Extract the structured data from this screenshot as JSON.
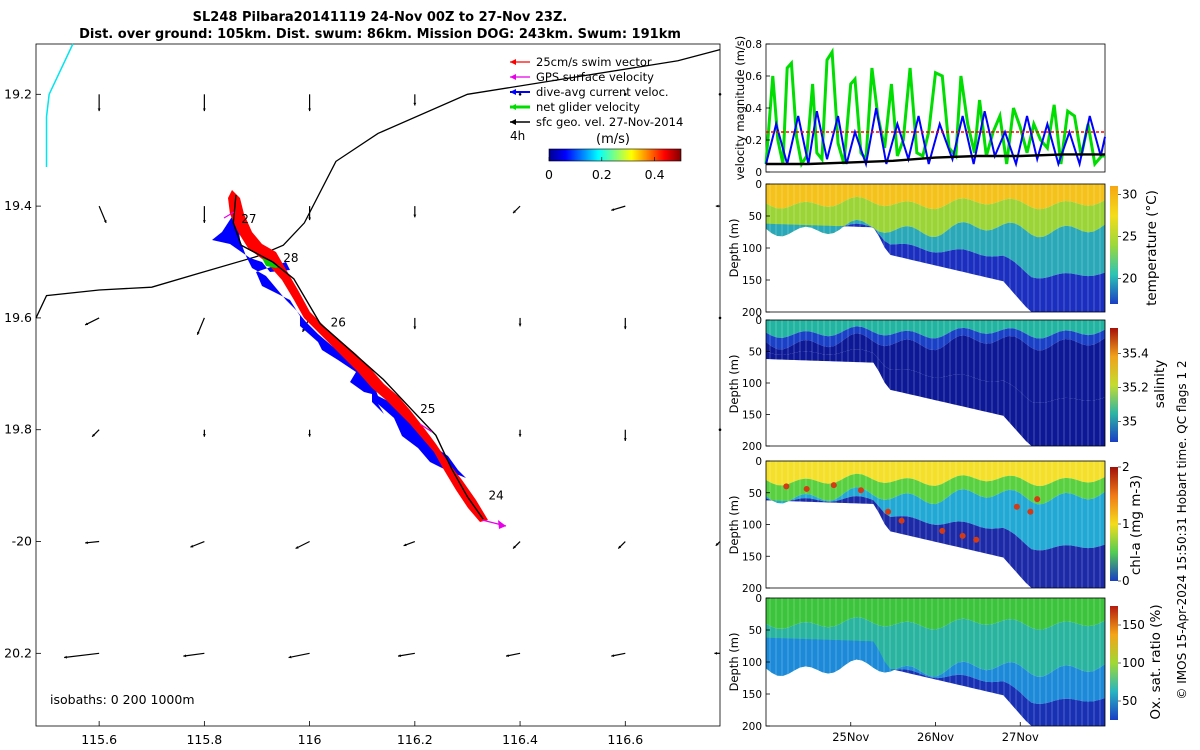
{
  "titles": {
    "line1": "SL248 Pilbara20141119 24-Nov 00Z to 27-Nov 23Z.",
    "line2": "Dist. over ground: 105km. Dist. swum: 86km. Mission DOG: 243km. Swum: 191km"
  },
  "colors": {
    "swim": "#ff0000",
    "gps": "#e800e8",
    "current": "#0000ff",
    "net": "#00dd00",
    "geo": "#000000",
    "track": "#000000",
    "coast": "#00e5ee"
  },
  "footer": {
    "credit": "© IMOS 15-Apr-2024 15:50:31 Hobart time. QC flags 1  2"
  },
  "chart_data": [
    {
      "type": "map",
      "title": "SL248 Pilbara20141119 24-Nov 00Z to 27-Nov 23Z.",
      "xlim": [
        115.48,
        116.78
      ],
      "ylim": [
        -20.33,
        -19.11
      ],
      "x_ticks": [
        115.6,
        115.8,
        116,
        116.2,
        116.4,
        116.6
      ],
      "x_tick_labels": [
        "115.6",
        "115.8",
        "116",
        "116.2",
        "116.4",
        "116.6"
      ],
      "y_ticks": [
        -19.2,
        -19.4,
        -19.6,
        -19.8,
        -20,
        -20.2
      ],
      "y_tick_labels": [
        "19.2",
        "19.4",
        "19.6",
        "19.8",
        "-20",
        "20.2"
      ],
      "legend": [
        {
          "label": "25cm/s swim vector",
          "color_key": "swim"
        },
        {
          "label": "GPS surface velocity",
          "color_key": "gps"
        },
        {
          "label": "dive-avg current veloc.",
          "color_key": "current"
        },
        {
          "label": "net glider velocity",
          "color_key": "net"
        },
        {
          "label": "sfc geo. vel. 27-Nov-2014",
          "color_key": "geo"
        }
      ],
      "interval_label": "4h",
      "colorbar": {
        "label": "(m/s)",
        "ticks": [
          0,
          0.2,
          0.4
        ],
        "tick_labels": [
          "0",
          "0.2",
          "0.4"
        ],
        "range": [
          0,
          0.5
        ]
      },
      "isobaths_label": "isobaths: 0   200  1000m",
      "track_lon": [
        115.86,
        115.855,
        115.87,
        115.93,
        115.97,
        116.02,
        116.08,
        116.14,
        116.2,
        116.24,
        116.27,
        116.3,
        116.33
      ],
      "track_lat": [
        -19.38,
        -19.43,
        -19.47,
        -19.5,
        -19.53,
        -19.61,
        -19.66,
        -19.71,
        -19.77,
        -19.81,
        -19.87,
        -19.92,
        -19.96
      ],
      "day_labels": [
        {
          "label": "27",
          "lon": 115.87,
          "lat": -19.43
        },
        {
          "label": "28",
          "lon": 115.95,
          "lat": -19.5
        },
        {
          "label": "26",
          "lon": 116.04,
          "lat": -19.615
        },
        {
          "label": "25",
          "lon": 116.21,
          "lat": -19.77
        },
        {
          "label": "24",
          "lon": 116.34,
          "lat": -19.925
        }
      ],
      "isobath_lon": [
        115.48,
        115.5,
        115.6,
        115.7,
        115.79,
        115.9,
        115.95,
        115.99,
        116.05,
        116.13,
        116.3,
        116.5,
        116.7,
        116.78
      ],
      "isobath_lat": [
        -19.6,
        -19.56,
        -19.55,
        -19.545,
        -19.52,
        -19.49,
        -19.47,
        -19.43,
        -19.32,
        -19.27,
        -19.2,
        -19.17,
        -19.14,
        -19.12
      ],
      "coast_lon": [
        115.55,
        115.535,
        115.52,
        115.505,
        115.5,
        115.5
      ],
      "coast_lat": [
        -19.11,
        -19.14,
        -19.17,
        -19.2,
        -19.24,
        -19.33
      ],
      "geo_vectors": {
        "lons": [
          115.6,
          115.8,
          116.0,
          116.2,
          116.4,
          116.6,
          116.78
        ],
        "lats": [
          -19.2,
          -19.4,
          -19.6,
          -19.8,
          -20.0,
          -20.2
        ],
        "u": [
          [
            0,
            0,
            0,
            0,
            0,
            0,
            0
          ],
          [
            0.005,
            0,
            0,
            0,
            -0.005,
            -0.01,
            -0.003
          ],
          [
            -0.01,
            -0.005,
            -0.005,
            0,
            0,
            0,
            0
          ],
          [
            -0.005,
            0,
            0,
            0,
            0,
            0,
            0
          ],
          [
            -0.01,
            -0.01,
            -0.01,
            -0.008,
            -0.005,
            -0.005,
            -0.003
          ],
          [
            -0.025,
            -0.015,
            -0.015,
            -0.012,
            -0.01,
            -0.01,
            -0.004
          ]
        ],
        "v": [
          [
            -0.012,
            -0.012,
            -0.012,
            -0.008,
            0,
            0,
            0
          ],
          [
            -0.012,
            -0.012,
            -0.01,
            -0.008,
            -0.005,
            -0.003,
            0
          ],
          [
            -0.005,
            -0.012,
            -0.01,
            -0.008,
            -0.006,
            -0.008,
            0
          ],
          [
            -0.005,
            -0.005,
            -0.005,
            -0.006,
            -0.005,
            -0.008,
            0
          ],
          [
            -0.001,
            -0.004,
            -0.005,
            -0.003,
            -0.005,
            -0.005,
            -0.003
          ],
          [
            -0.003,
            -0.002,
            -0.003,
            -0.002,
            -0.002,
            -0.002,
            0
          ]
        ]
      }
    },
    {
      "type": "line",
      "ylabel": "velocity magnitude (m/s)",
      "xlim": [
        0,
        4
      ],
      "ylim": [
        0,
        0.8
      ],
      "y_ticks": [
        0,
        0.2,
        0.4,
        0.6,
        0.8
      ],
      "y_tick_labels": [
        "0",
        "0.2",
        "0.4",
        "0.6",
        "0.8"
      ],
      "series": [
        {
          "name": "net glider velocity",
          "color_key": "net",
          "x": [
            0,
            0.08,
            0.14,
            0.2,
            0.25,
            0.3,
            0.36,
            0.42,
            0.48,
            0.55,
            0.6,
            0.66,
            0.72,
            0.78,
            0.85,
            0.92,
            1.0,
            1.05,
            1.12,
            1.18,
            1.25,
            1.32,
            1.4,
            1.48,
            1.55,
            1.62,
            1.7,
            1.78,
            1.85,
            1.92,
            2.0,
            2.08,
            2.16,
            2.24,
            2.3,
            2.38,
            2.46,
            2.52,
            2.6,
            2.68,
            2.76,
            2.84,
            2.92,
            3.0,
            3.08,
            3.16,
            3.24,
            3.32,
            3.4,
            3.48,
            3.56,
            3.64,
            3.72,
            3.8,
            3.88,
            3.96,
            4.0
          ],
          "y": [
            0.05,
            0.6,
            0.2,
            0.05,
            0.65,
            0.68,
            0.22,
            0.05,
            0.1,
            0.55,
            0.12,
            0.08,
            0.7,
            0.75,
            0.18,
            0.05,
            0.55,
            0.58,
            0.12,
            0.08,
            0.65,
            0.35,
            0.15,
            0.55,
            0.1,
            0.2,
            0.65,
            0.12,
            0.1,
            0.25,
            0.62,
            0.6,
            0.15,
            0.1,
            0.6,
            0.3,
            0.12,
            0.45,
            0.1,
            0.25,
            0.35,
            0.05,
            0.4,
            0.28,
            0.12,
            0.3,
            0.2,
            0.15,
            0.42,
            0.05,
            0.38,
            0.35,
            0.1,
            0.3,
            0.05,
            0.1,
            0.1
          ]
        },
        {
          "name": "dive-avg current veloc.",
          "color_key": "current",
          "x": [
            0,
            0.12,
            0.25,
            0.38,
            0.5,
            0.6,
            0.72,
            0.85,
            0.95,
            1.05,
            1.18,
            1.3,
            1.42,
            1.55,
            1.68,
            1.8,
            1.92,
            2.05,
            2.2,
            2.32,
            2.45,
            2.58,
            2.7,
            2.82,
            2.95,
            3.08,
            3.2,
            3.32,
            3.45,
            3.58,
            3.7,
            3.82,
            3.95,
            4.0
          ],
          "y": [
            0.05,
            0.3,
            0.05,
            0.35,
            0.05,
            0.38,
            0.08,
            0.35,
            0.05,
            0.25,
            0.05,
            0.4,
            0.05,
            0.3,
            0.08,
            0.35,
            0.05,
            0.3,
            0.08,
            0.35,
            0.05,
            0.38,
            0.1,
            0.25,
            0.05,
            0.35,
            0.08,
            0.3,
            0.05,
            0.25,
            0.05,
            0.35,
            0.1,
            0.22
          ]
        },
        {
          "name": "25cm/s swim vector",
          "color_key": "swim",
          "x": [
            0,
            4.0
          ],
          "y": [
            0.25,
            0.25
          ]
        },
        {
          "name": "sfc geo. vel. 27-Nov-2014",
          "color_key": "geo",
          "x": [
            0,
            0.5,
            1.0,
            1.5,
            2.0,
            2.5,
            3.0,
            3.5,
            4.0
          ],
          "y": [
            0.05,
            0.05,
            0.06,
            0.07,
            0.09,
            0.1,
            0.1,
            0.11,
            0.11
          ]
        }
      ]
    },
    {
      "type": "heatmap",
      "ylabel": "Depth (m)",
      "variable": "temperature (°C)",
      "ylim": [
        0,
        200
      ],
      "y_ticks": [
        0,
        50,
        100,
        150,
        200
      ],
      "y_tick_labels": [
        "0",
        "50",
        "100",
        "150",
        "200"
      ],
      "colorbar_range": [
        17,
        31
      ],
      "colorbar_ticks": [
        20,
        25,
        30
      ],
      "colorbar_tick_labels": [
        "20",
        "25",
        "30"
      ],
      "scheme": "temperature"
    },
    {
      "type": "heatmap",
      "ylabel": "Depth (m)",
      "variable": "salinity",
      "ylim": [
        0,
        200
      ],
      "y_ticks": [
        0,
        50,
        100,
        150,
        200
      ],
      "y_tick_labels": [
        "0",
        "50",
        "100",
        "150",
        "200"
      ],
      "colorbar_range": [
        34.88,
        35.55
      ],
      "colorbar_ticks": [
        35,
        35.2,
        35.4
      ],
      "colorbar_tick_labels": [
        "35",
        "35.2",
        "35.4"
      ],
      "scheme": "salinity"
    },
    {
      "type": "heatmap",
      "ylabel": "Depth (m)",
      "variable": "chl-a (mg m-3)",
      "ylim": [
        0,
        200
      ],
      "y_ticks": [
        0,
        50,
        100,
        150,
        200
      ],
      "y_tick_labels": [
        "0",
        "50",
        "100",
        "150",
        "200"
      ],
      "colorbar_range": [
        0,
        2
      ],
      "colorbar_ticks": [
        0,
        1,
        2
      ],
      "colorbar_tick_labels": [
        "0",
        "1",
        "2"
      ],
      "scheme": "chla"
    },
    {
      "type": "heatmap",
      "ylabel": "Depth (m)",
      "variable": "Ox. sat. ratio (%)",
      "ylim": [
        0,
        200
      ],
      "y_ticks": [
        0,
        50,
        100,
        150,
        200
      ],
      "y_tick_labels": [
        "0",
        "50",
        "100",
        "150",
        "200"
      ],
      "colorbar_range": [
        25,
        175
      ],
      "colorbar_ticks": [
        50,
        100,
        150
      ],
      "colorbar_tick_labels": [
        "50",
        "100",
        "150"
      ],
      "scheme": "oxygen",
      "x_ticks": [
        1,
        2,
        3
      ],
      "x_tick_labels": [
        "25Nov",
        "26Nov",
        "27Nov"
      ]
    }
  ]
}
